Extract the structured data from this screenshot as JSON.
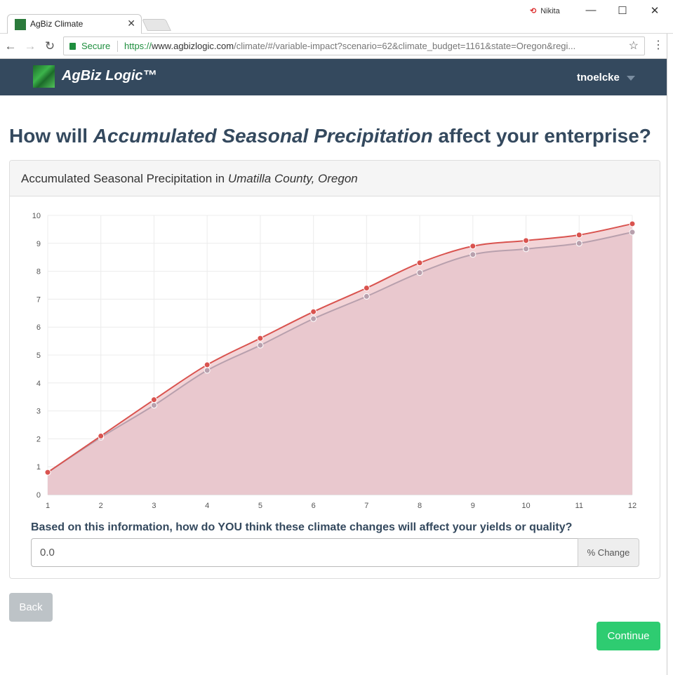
{
  "browser": {
    "tab_title": "AgBiz Climate",
    "profile_name": "Nikita",
    "secure_label": "Secure",
    "url_proto": "https://",
    "url_host": "www.agbizlogic.com",
    "url_path": "/climate/#/variable-impact?scenario=62&climate_budget=1161&state=Oregon&regi..."
  },
  "app": {
    "brand": "AgBiz Logic™",
    "username": "tnoelcke"
  },
  "page": {
    "heading_prefix": "How will",
    "heading_variable": "Accumulated Seasonal Precipitation",
    "heading_suffix": "affect your enterprise?",
    "panel_title_prefix": "Accumulated Seasonal Precipitation in",
    "panel_title_location": "Umatilla County, Oregon",
    "question": "Based on this information, how do YOU think these climate changes will affect your yields or quality?",
    "change_value": "0.0",
    "change_unit": "% Change",
    "back_label": "Back",
    "continue_label": "Continue"
  },
  "colors": {
    "header_bg": "#34495e",
    "series_future": "#d9534f",
    "series_historical": "#b8a0ad",
    "fill": "#e8c7cd",
    "continue": "#2ecc71",
    "back": "#bdc3c7"
  },
  "chart_data": {
    "type": "area",
    "x": [
      1,
      2,
      3,
      4,
      5,
      6,
      7,
      8,
      9,
      10,
      11,
      12
    ],
    "xlim": [
      1,
      12
    ],
    "ylim": [
      0,
      10
    ],
    "yticks": [
      0,
      1,
      2,
      3,
      4,
      5,
      6,
      7,
      8,
      9,
      10
    ],
    "grid": true,
    "series": [
      {
        "values": [
          0.8,
          2.1,
          3.4,
          4.65,
          5.6,
          6.55,
          7.4,
          8.3,
          8.9,
          9.1,
          9.3,
          9.7
        ],
        "color": "#d9534f"
      },
      {
        "values": [
          0.8,
          2.05,
          3.2,
          4.45,
          5.35,
          6.3,
          7.1,
          7.95,
          8.6,
          8.8,
          9.0,
          9.4
        ],
        "color": "#b8a0ad"
      }
    ]
  }
}
